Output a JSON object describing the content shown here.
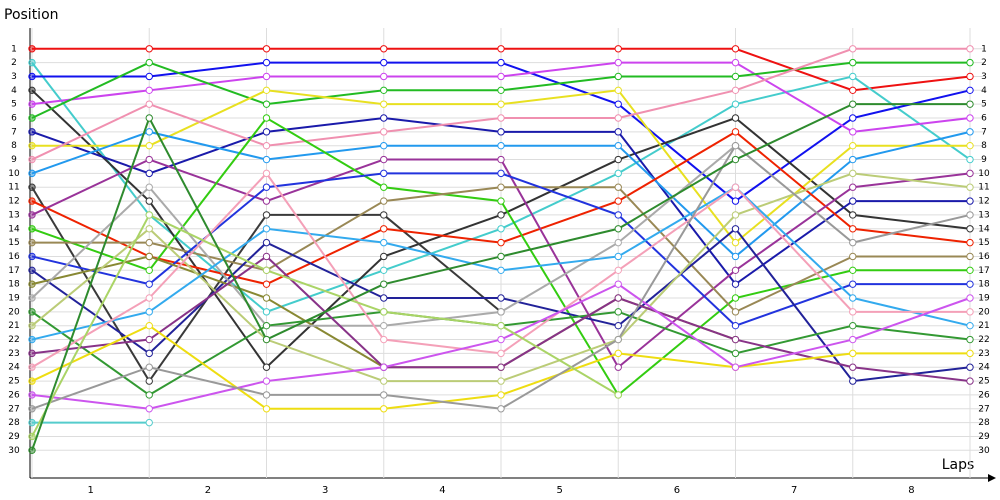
{
  "chart_data": {
    "type": "line",
    "y_label": "Position",
    "x_label": "Laps",
    "x": [
      0,
      1,
      2,
      3,
      4,
      5,
      6,
      7,
      8
    ],
    "xlim": [
      0,
      8
    ],
    "xticks": [
      {
        "value": 0.5,
        "label": "1"
      },
      {
        "value": 1.5,
        "label": "2"
      },
      {
        "value": 2.5,
        "label": "3"
      },
      {
        "value": 3.5,
        "label": "4"
      },
      {
        "value": 4.5,
        "label": "5"
      },
      {
        "value": 5.5,
        "label": "6"
      },
      {
        "value": 6.5,
        "label": "7"
      },
      {
        "value": 7.5,
        "label": "8"
      }
    ],
    "ylim": [
      32,
      -0.5
    ],
    "yticks": [
      1,
      2,
      3,
      4,
      5,
      6,
      7,
      8,
      9,
      10,
      11,
      12,
      13,
      14,
      15,
      16,
      17,
      18,
      19,
      20,
      21,
      22,
      23,
      24,
      25,
      26,
      27,
      28,
      29,
      30
    ],
    "grid": true,
    "series": [
      {
        "color": "#ee1111",
        "values": [
          1,
          1,
          1,
          1,
          1,
          1,
          1,
          4,
          3
        ]
      },
      {
        "color": "#44cccc",
        "values": [
          2,
          13,
          20,
          17,
          14,
          10,
          5,
          3,
          9
        ]
      },
      {
        "color": "#1111ee",
        "values": [
          3,
          3,
          2,
          2,
          2,
          5,
          12,
          6,
          4
        ]
      },
      {
        "color": "#333333",
        "values": [
          4,
          12,
          24,
          16,
          13,
          9,
          6,
          13,
          14
        ]
      },
      {
        "color": "#cc44ee",
        "values": [
          5,
          4,
          3,
          3,
          3,
          2,
          2,
          7,
          6
        ]
      },
      {
        "color": "#22bb22",
        "values": [
          6,
          2,
          5,
          4,
          4,
          3,
          3,
          2,
          2
        ]
      },
      {
        "color": "#1a1aaa",
        "values": [
          7,
          10,
          7,
          6,
          7,
          7,
          18,
          12,
          12
        ]
      },
      {
        "color": "#e8e020",
        "values": [
          8,
          8,
          4,
          5,
          5,
          4,
          15,
          8,
          8
        ]
      },
      {
        "color": "#f090b0",
        "values": [
          9,
          5,
          8,
          7,
          6,
          6,
          4,
          1,
          1
        ]
      },
      {
        "color": "#2299ee",
        "values": [
          10,
          7,
          9,
          8,
          8,
          8,
          16,
          9,
          7
        ]
      },
      {
        "color": "#3a3a3a",
        "values": [
          11,
          25,
          13,
          13,
          20,
          null,
          null,
          null,
          null
        ]
      },
      {
        "color": "#ee2200",
        "values": [
          12,
          16,
          18,
          14,
          15,
          12,
          7,
          14,
          15
        ]
      },
      {
        "color": "#993399",
        "values": [
          13,
          9,
          12,
          9,
          9,
          24,
          17,
          11,
          10
        ]
      },
      {
        "color": "#33cc11",
        "values": [
          14,
          17,
          6,
          11,
          12,
          26,
          19,
          17,
          17
        ]
      },
      {
        "color": "#998855",
        "values": [
          15,
          15,
          17,
          12,
          11,
          11,
          20,
          16,
          16
        ]
      },
      {
        "color": "#2233dd",
        "values": [
          16,
          18,
          11,
          10,
          10,
          13,
          21,
          18,
          18
        ]
      },
      {
        "color": "#222299",
        "values": [
          17,
          23,
          15,
          19,
          19,
          21,
          14,
          25,
          24
        ]
      },
      {
        "color": "#888833",
        "values": [
          18,
          16,
          19,
          24,
          24,
          19,
          22,
          null,
          null
        ]
      },
      {
        "color": "#aaaaaa",
        "values": [
          19,
          11,
          21,
          21,
          20,
          15,
          8,
          null,
          null
        ]
      },
      {
        "color": "#339933",
        "values": [
          20,
          26,
          21,
          20,
          21,
          20,
          23,
          21,
          22
        ]
      },
      {
        "color": "#bbcc77",
        "values": [
          21,
          14,
          22,
          25,
          25,
          22,
          13,
          10,
          11
        ]
      },
      {
        "color": "#33aaee",
        "values": [
          22,
          20,
          14,
          15,
          17,
          16,
          11,
          19,
          21
        ]
      },
      {
        "color": "#883388",
        "values": [
          23,
          22,
          16,
          24,
          24,
          19,
          22,
          24,
          25
        ]
      },
      {
        "color": "#f4a0b8",
        "values": [
          24,
          19,
          10,
          22,
          23,
          17,
          11,
          20,
          20
        ]
      },
      {
        "color": "#eedd11",
        "values": [
          25,
          21,
          27,
          27,
          26,
          23,
          24,
          23,
          23
        ]
      },
      {
        "color": "#cc55ee",
        "values": [
          26,
          27,
          25,
          24,
          22,
          18,
          24,
          22,
          19
        ]
      },
      {
        "color": "#999999",
        "values": [
          27,
          24,
          26,
          26,
          27,
          22,
          8,
          15,
          13
        ]
      },
      {
        "color": "#55cccc",
        "values": [
          28,
          28,
          null,
          null,
          null,
          null,
          null,
          null,
          null
        ]
      },
      {
        "color": "#aad466",
        "values": [
          29,
          13,
          17,
          20,
          21,
          26,
          null,
          null,
          null
        ]
      },
      {
        "color": "#2e8b2e",
        "values": [
          30,
          6,
          22,
          18,
          16,
          14,
          9,
          5,
          5
        ]
      }
    ]
  }
}
